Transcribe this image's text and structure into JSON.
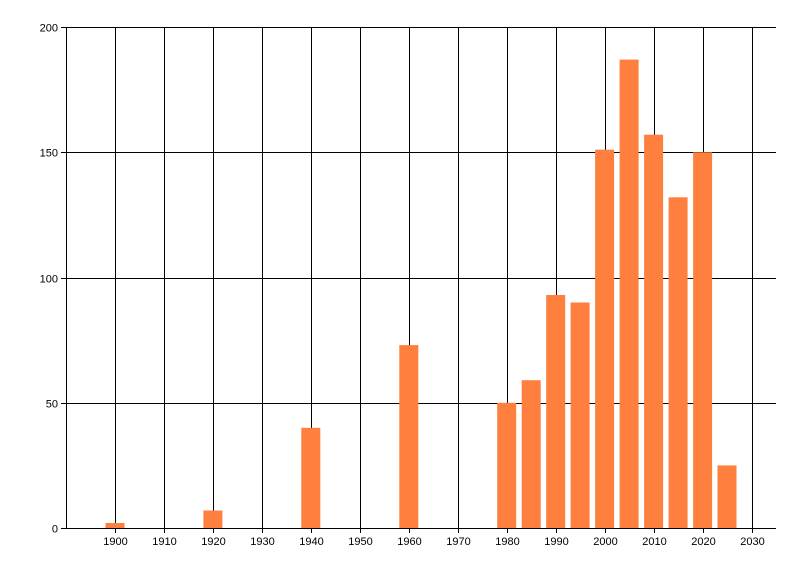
{
  "chart_data": {
    "type": "bar",
    "title": "",
    "xlabel": "",
    "ylabel": "",
    "x": [
      1900,
      1920,
      1940,
      1960,
      1980,
      1985,
      1990,
      1995,
      2000,
      2005,
      2010,
      2015,
      2020,
      2025
    ],
    "values": [
      2,
      7,
      40,
      73,
      50,
      59,
      93,
      90,
      151,
      187,
      157,
      132,
      150,
      25
    ],
    "xlim": [
      1890,
      2035
    ],
    "ylim": [
      0,
      200
    ],
    "xticks": [
      1900,
      1910,
      1920,
      1930,
      1940,
      1950,
      1960,
      1970,
      1980,
      1990,
      2000,
      2010,
      2020,
      2030
    ],
    "yticks": [
      0,
      50,
      100,
      150,
      200
    ],
    "grid": true,
    "bar_color": "#FF7F3F",
    "grid_color": "#000000"
  }
}
